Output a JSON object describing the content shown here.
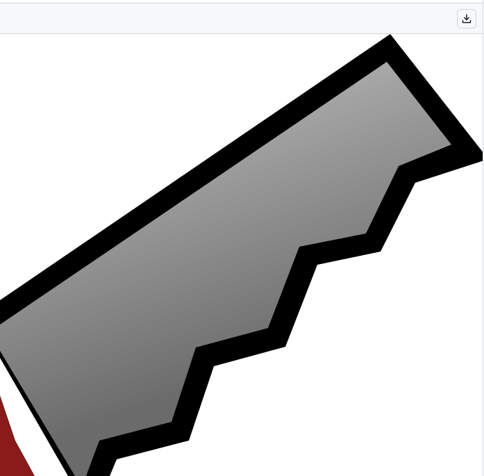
{
  "toolbar": {
    "download_icon": "download-icon"
  },
  "image": {
    "subject": "hand-saw-icon",
    "colors": {
      "outline": "#000000",
      "blade_light": "#b0b0b0",
      "blade_dark": "#6e6e6e",
      "handle": "#8b1a1a",
      "toolbar_bg": "#f6f8fa",
      "border": "#d0d7de"
    }
  }
}
